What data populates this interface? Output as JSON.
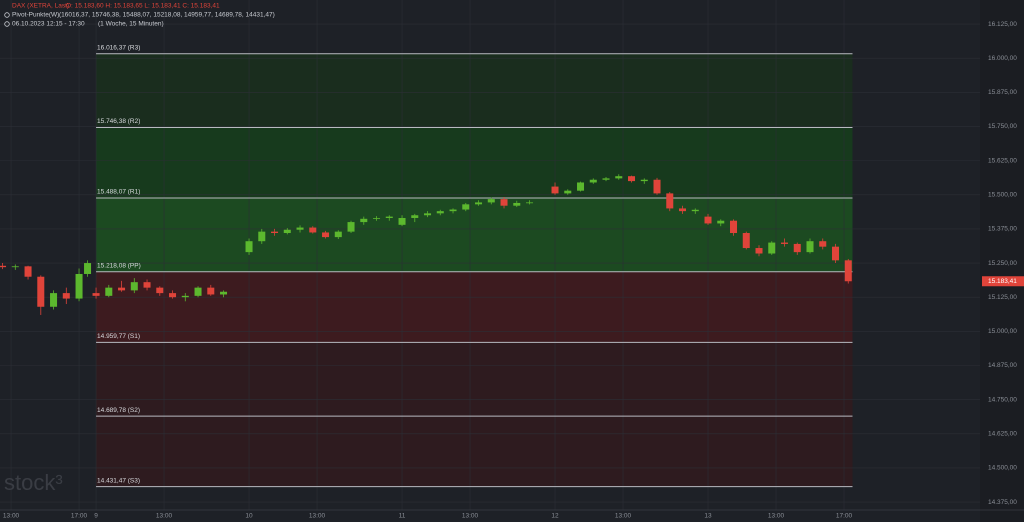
{
  "chart_data": {
    "type": "candlestick",
    "header": {
      "symbol": "DAX (XETRA, Last)",
      "ohlc": "O: 15.183,60   H: 15.183,65   L: 15.183,41   C: 15.183,41",
      "indicator": "Pivot-Punkte(W)",
      "indicator_values": "(16016,37, 15746,38, 15488,07, 15218,08, 14959,77, 14689,78, 14431,47)",
      "period": "06.10.2023 12:15 - 17:30",
      "interval": "(1 Woche, 15 Minuten)"
    },
    "watermark": "stock³",
    "up_color": "#5cb82e",
    "down_color": "#e0443a",
    "grid": true,
    "xlim": [
      -22.6,
      208
    ],
    "ylim": [
      14346,
      16213
    ],
    "xticks": [
      {
        "value": -20,
        "label": "13:00"
      },
      {
        "value": -4,
        "label": "17:00"
      },
      {
        "value": 0,
        "label": "9"
      },
      {
        "value": 16,
        "label": "13:00"
      },
      {
        "value": 36,
        "label": "10"
      },
      {
        "value": 52,
        "label": "13:00"
      },
      {
        "value": 72,
        "label": "11"
      },
      {
        "value": 88,
        "label": "13:00"
      },
      {
        "value": 108,
        "label": "12"
      },
      {
        "value": 124,
        "label": "13:00"
      },
      {
        "value": 144,
        "label": "13"
      },
      {
        "value": 160,
        "label": "13:00"
      },
      {
        "value": 176,
        "label": "17:00"
      }
    ],
    "yticks": [
      {
        "value": 16125,
        "label": "16.125,00"
      },
      {
        "value": 16000,
        "label": "16.000,00"
      },
      {
        "value": 15875,
        "label": "15.875,00"
      },
      {
        "value": 15750,
        "label": "15.750,00"
      },
      {
        "value": 15625,
        "label": "15.625,00"
      },
      {
        "value": 15500,
        "label": "15.500,00"
      },
      {
        "value": 15375,
        "label": "15.375,00"
      },
      {
        "value": 15250,
        "label": "15.250,00"
      },
      {
        "value": 15125,
        "label": "15.125,00"
      },
      {
        "value": 15000,
        "label": "15.000,00"
      },
      {
        "value": 14875,
        "label": "14.875,00"
      },
      {
        "value": 14750,
        "label": "14.750,00"
      },
      {
        "value": 14625,
        "label": "14.625,00"
      },
      {
        "value": 14500,
        "label": "14.500,00"
      },
      {
        "value": 14375,
        "label": "14.375,00"
      }
    ],
    "pivots": {
      "xrange": [
        0,
        178
      ],
      "levels": [
        {
          "value": 16016.37,
          "label": "16.016,37 (R3)",
          "fill": "#1a2d1e"
        },
        {
          "value": 15746.38,
          "label": "15.746,38 (R2)",
          "fill": "#173a1d"
        },
        {
          "value": 15488.07,
          "label": "15.488,07 (R1)",
          "fill": "#1c4a21"
        },
        {
          "value": 15218.08,
          "label": "15.218,08 (PP)",
          "fill": "#3d1b1f"
        },
        {
          "value": 14959.77,
          "label": "14.959,77 (S1)",
          "fill": "#2e1b1f"
        },
        {
          "value": 14689.78,
          "label": "14.689,78 (S2)",
          "fill": "#2e1b1f"
        },
        {
          "value": 14431.47,
          "label": "14.431,47 (S3)",
          "fill": "#2e1b1f"
        }
      ]
    },
    "last_price": {
      "value": 15183.41,
      "label": "15.183,41"
    },
    "series": [
      {
        "name": "DAX (XETRA, Last)",
        "x": [
          -22,
          -19,
          -16,
          -13,
          -10,
          -7,
          -4,
          -2,
          0,
          3,
          6,
          9,
          12,
          15,
          18,
          21,
          24,
          27,
          30,
          36,
          39,
          42,
          45,
          48,
          51,
          54,
          57,
          60,
          63,
          66,
          69,
          72,
          75,
          78,
          81,
          84,
          87,
          90,
          93,
          96,
          99,
          102,
          108,
          111,
          114,
          117,
          120,
          123,
          126,
          129,
          132,
          135,
          138,
          141,
          144,
          147,
          150,
          153,
          156,
          159,
          162,
          165,
          168,
          171,
          174,
          177
        ],
        "open": [
          15240,
          15235,
          15238,
          15200,
          15090,
          15140,
          15120,
          15210,
          15140,
          15130,
          15160,
          15150,
          15180,
          15160,
          15140,
          15125,
          15130,
          15160,
          15135,
          15290,
          15330,
          15365,
          15360,
          15372,
          15380,
          15362,
          15345,
          15365,
          15400,
          15412,
          15415,
          15390,
          15415,
          15425,
          15432,
          15440,
          15446,
          15465,
          15472,
          15484,
          15460,
          15470,
          15530,
          15505,
          15515,
          15545,
          15555,
          15560,
          15568,
          15550,
          15555,
          15505,
          15450,
          15440,
          15420,
          15395,
          15405,
          15360,
          15305,
          15285,
          15325,
          15320,
          15290,
          15330,
          15310,
          15260
        ],
        "high": [
          15250,
          15245,
          15240,
          15205,
          15150,
          15160,
          15230,
          15260,
          15160,
          15170,
          15185,
          15195,
          15190,
          15165,
          15150,
          15140,
          15165,
          15170,
          15150,
          15340,
          15375,
          15375,
          15378,
          15388,
          15385,
          15368,
          15370,
          15405,
          15420,
          15422,
          15425,
          15425,
          15430,
          15440,
          15445,
          15450,
          15470,
          15480,
          15490,
          15492,
          15478,
          15480,
          15545,
          15520,
          15548,
          15560,
          15565,
          15575,
          15570,
          15560,
          15562,
          15510,
          15460,
          15450,
          15430,
          15410,
          15410,
          15365,
          15315,
          15330,
          15340,
          15325,
          15340,
          15340,
          15320,
          15265
        ],
        "low": [
          15228,
          15225,
          15190,
          15060,
          15080,
          15100,
          15110,
          15200,
          15120,
          15125,
          15145,
          15140,
          15150,
          15130,
          15120,
          15110,
          15125,
          15130,
          15125,
          15280,
          15320,
          15350,
          15355,
          15362,
          15358,
          15340,
          15338,
          15360,
          15390,
          15405,
          15405,
          15385,
          15400,
          15418,
          15425,
          15432,
          15440,
          15460,
          15465,
          15450,
          15455,
          15465,
          15500,
          15500,
          15512,
          15540,
          15550,
          15555,
          15545,
          15540,
          15500,
          15440,
          15430,
          15430,
          15390,
          15385,
          15350,
          15300,
          15275,
          15280,
          15310,
          15280,
          15285,
          15300,
          15250,
          15175
        ],
        "close": [
          15235,
          15238,
          15200,
          15090,
          15140,
          15120,
          15210,
          15250,
          15130,
          15160,
          15150,
          15180,
          15160,
          15140,
          15125,
          15130,
          15160,
          15135,
          15145,
          15330,
          15365,
          15360,
          15372,
          15380,
          15362,
          15345,
          15365,
          15400,
          15412,
          15415,
          15420,
          15415,
          15425,
          15432,
          15440,
          15446,
          15465,
          15472,
          15484,
          15460,
          15470,
          15472,
          15505,
          15515,
          15545,
          15555,
          15560,
          15568,
          15550,
          15555,
          15505,
          15450,
          15440,
          15445,
          15395,
          15405,
          15360,
          15305,
          15285,
          15325,
          15320,
          15290,
          15330,
          15310,
          15260,
          15183.41
        ]
      }
    ]
  }
}
